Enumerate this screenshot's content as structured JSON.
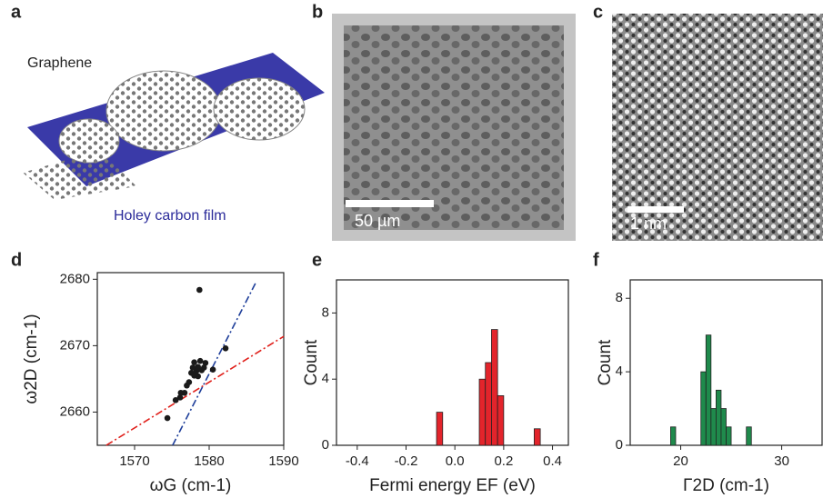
{
  "panels": {
    "a": {
      "label": "a",
      "graphene": "Graphene",
      "substrate": "Holey carbon film"
    },
    "b": {
      "label": "b",
      "scale_bar": "50 µm"
    },
    "c": {
      "label": "c",
      "scale_bar": "1 nm"
    },
    "d": {
      "label": "d"
    },
    "e": {
      "label": "e"
    },
    "f": {
      "label": "f"
    }
  },
  "chart_data": [
    {
      "type": "scatter",
      "xlabel": "ωG (cm-1)",
      "ylabel": "ω2D (cm-1)",
      "xlim": [
        1565,
        1590
      ],
      "xticks": [
        1570,
        1580,
        1590
      ],
      "ylim": [
        2655,
        2681
      ],
      "yticks": [
        2660,
        2670,
        2680
      ],
      "color": "#1a1a1a",
      "x": [
        1578.7,
        1574.4,
        1575.5,
        1576.1,
        1576.2,
        1576.7,
        1577.0,
        1577.3,
        1577.6,
        1577.8,
        1578.0,
        1578.3,
        1578.5,
        1578.8,
        1579.0,
        1579.3,
        1579.5,
        1578.5,
        1580.5,
        1582.2,
        1578.0
      ],
      "y": [
        2678.4,
        2659.1,
        2661.8,
        2662.2,
        2662.9,
        2662.9,
        2664.0,
        2664.5,
        2665.9,
        2666.7,
        2667.5,
        2666.2,
        2666.8,
        2667.7,
        2666.3,
        2666.7,
        2667.4,
        2665.4,
        2666.4,
        2669.6,
        2665.5
      ],
      "lines": [
        {
          "color": "#e0201b",
          "x": [
            1566.2,
            1590
          ],
          "y": [
            2655,
            2671.4
          ]
        },
        {
          "color": "#1f3f9a",
          "x": [
            1575.1,
            1586.3
          ],
          "y": [
            2655,
            2679.6
          ]
        }
      ]
    },
    {
      "type": "histogram",
      "xlabel": "Fermi energy EF (eV)",
      "ylabel": "Count",
      "xlim": [
        -0.485,
        0.465
      ],
      "xticks": [
        -0.4,
        -0.2,
        {
          "value": 0,
          "label": "0.0"
        },
        0.2,
        0.4
      ],
      "ylim": [
        0,
        10
      ],
      "yticks": [
        0,
        4,
        8
      ],
      "color": "#e3242b",
      "bins": [
        -0.075,
        -0.05,
        -0.025,
        0,
        0.025,
        0.05,
        0.075,
        0.1,
        0.125,
        0.15,
        0.175,
        0.2,
        0.225,
        0.25,
        0.275,
        0.3,
        0.325,
        0.35
      ],
      "values": [
        2,
        0,
        0,
        0,
        0,
        0,
        0,
        4,
        5,
        7,
        3,
        0,
        0,
        0,
        0,
        0,
        1
      ]
    },
    {
      "type": "histogram",
      "xlabel": "Γ2D (cm-1)",
      "ylabel": "Count",
      "xlim": [
        15,
        34
      ],
      "xticks": [
        20,
        30
      ],
      "ylim": [
        0,
        9
      ],
      "yticks": [
        0,
        4,
        8
      ],
      "color": "#1f8a4c",
      "bins": [
        19,
        19.5,
        20,
        20.5,
        21,
        21.5,
        22,
        22.5,
        23,
        23.5,
        24,
        24.5,
        25,
        25.5,
        26,
        26.5,
        27
      ],
      "values": [
        1,
        0,
        0,
        0,
        0,
        0,
        4,
        6,
        2,
        3,
        2,
        1,
        0,
        0,
        0,
        1
      ]
    }
  ]
}
